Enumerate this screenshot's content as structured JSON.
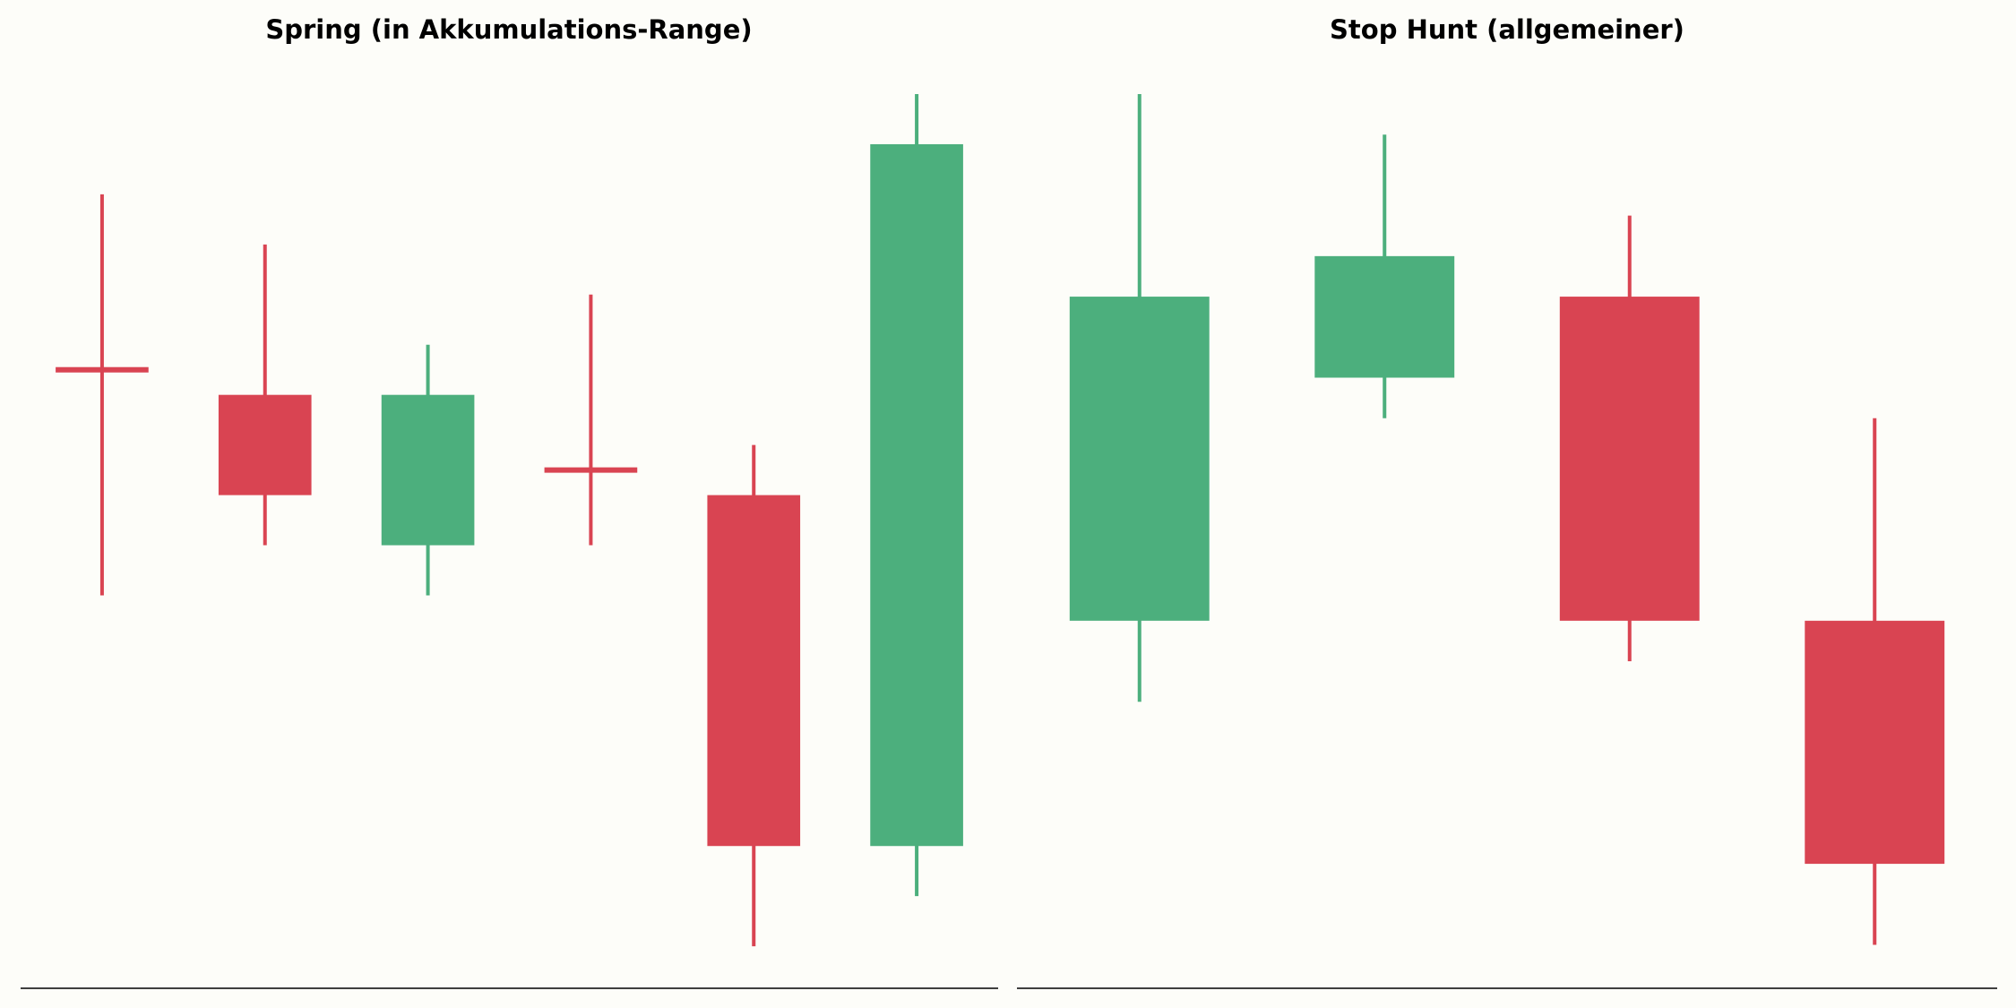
{
  "chart_data": [
    {
      "type": "candlestick",
      "title": "Spring (in Akkumulations-Range)",
      "categories": [
        null,
        null,
        null,
        null,
        null,
        null
      ],
      "open": [
        109.5,
        109,
        106,
        107.5,
        107,
        100
      ],
      "high": [
        113,
        112,
        110,
        111,
        108,
        115
      ],
      "low": [
        105,
        106,
        105,
        106,
        98,
        99
      ],
      "close": [
        109.5,
        107,
        109,
        107.5,
        100,
        114
      ],
      "up_color": "#4caf7d",
      "down_color": "#d94452",
      "ylim": [
        97.18,
        115
      ]
    },
    {
      "type": "candlestick",
      "title": "Stop Hunt (allgemeiner)",
      "categories": [
        null,
        null,
        null,
        null
      ],
      "open": [
        108,
        114,
        116,
        108
      ],
      "high": [
        121,
        120,
        118,
        113
      ],
      "low": [
        106,
        113,
        107,
        100
      ],
      "close": [
        116,
        117,
        108,
        102
      ],
      "up_color": "#4caf7d",
      "down_color": "#d94452",
      "ylim": [
        98.95,
        121
      ]
    }
  ]
}
